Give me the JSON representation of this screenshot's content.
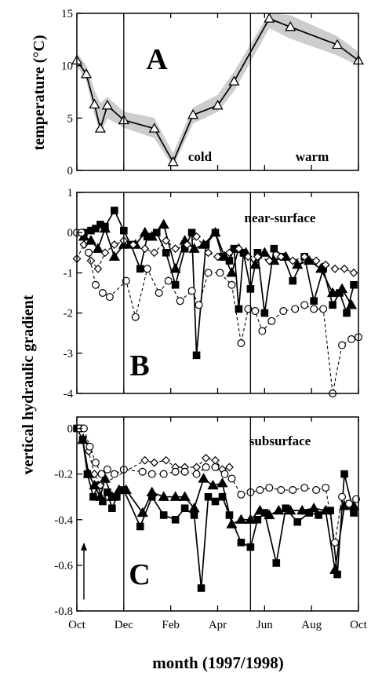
{
  "figure": {
    "x_axis_label": "month (1997/1998)",
    "y_label_top": "temperature (°C)",
    "y_label_bottom": "vertical hydraulic gradient",
    "month_ticks": [
      "Oct",
      "Dec",
      "Feb",
      "Apr",
      "Jun",
      "Aug",
      "Oct"
    ]
  },
  "chart_data": [
    {
      "type": "line",
      "panel": "A",
      "title": "A",
      "ylabel": "temperature (°C)",
      "xlabel": "",
      "x_unit": "months since Oct 1997",
      "xlim": [
        0,
        12
      ],
      "ylim": [
        0,
        15
      ],
      "yticks": [
        0,
        5,
        10,
        15
      ],
      "grid": false,
      "annotations": [
        "cold",
        "warm"
      ],
      "divider_x": [
        2,
        7.4
      ],
      "series": [
        {
          "marker": "open-triangle",
          "x": [
            0.0,
            0.4,
            0.75,
            1.0,
            1.3,
            2.0,
            3.3,
            4.1,
            4.95,
            6.0,
            6.7,
            8.2,
            9.1,
            11.1,
            12.0
          ],
          "y": [
            10.5,
            9.2,
            6.3,
            4.0,
            6.2,
            4.8,
            4.0,
            0.8,
            5.3,
            6.2,
            8.5,
            14.5,
            13.7,
            12.0,
            10.5
          ]
        }
      ],
      "band_upper": [
        11.2,
        10.0,
        7.6,
        6.4,
        7.0,
        5.6,
        5.0,
        1.6,
        6.0,
        7.2,
        9.4,
        15.0,
        14.8,
        12.8,
        11.3
      ],
      "band_lower": [
        10.0,
        8.6,
        5.4,
        3.6,
        5.0,
        4.1,
        3.1,
        0.4,
        4.5,
        5.6,
        7.6,
        13.6,
        12.6,
        11.0,
        10.0
      ]
    },
    {
      "type": "line",
      "panel": "B",
      "title": "B",
      "ylabel": "vertical hydraulic gradient",
      "xlabel": "",
      "x_unit": "months since Oct 1997",
      "xlim": [
        0,
        12
      ],
      "ylim": [
        -4,
        1
      ],
      "yticks": [
        -4,
        -3,
        -2,
        -1,
        0,
        1
      ],
      "grid": false,
      "annotations": [
        "near-surface"
      ],
      "divider_x": [
        2,
        7.4
      ],
      "series": [
        {
          "marker": "filled-square",
          "x": [
            0.3,
            0.6,
            0.8,
            1.0,
            1.2,
            1.6,
            2.0,
            2.3,
            2.7,
            3.0,
            3.4,
            3.8,
            4.2,
            4.6,
            4.9,
            5.1,
            5.5,
            5.9,
            6.2,
            6.5,
            6.7,
            6.9,
            7.1,
            7.4,
            7.7,
            8.0,
            8.4,
            8.8,
            9.2,
            9.7,
            10.1,
            10.5,
            10.9,
            11.2,
            11.5,
            11.8
          ],
          "y": [
            0.0,
            0.05,
            0.1,
            0.2,
            0.15,
            0.55,
            0.05,
            -0.3,
            -0.9,
            -0.1,
            0.0,
            -0.5,
            -1.3,
            -0.4,
            0.0,
            -3.05,
            -0.3,
            0.0,
            -0.6,
            -0.7,
            -0.4,
            -1.9,
            -0.5,
            -1.4,
            -0.5,
            -2.0,
            -0.4,
            -0.6,
            -1.2,
            -0.6,
            -1.7,
            -0.9,
            -1.8,
            -1.5,
            -2.0,
            -1.3
          ]
        },
        {
          "marker": "filled-triangle",
          "x": [
            0.3,
            0.6,
            0.9,
            1.2,
            1.6,
            2.0,
            2.5,
            2.9,
            3.2,
            3.7,
            4.2,
            4.6,
            5.0,
            5.4,
            5.9,
            6.3,
            6.6,
            6.9,
            7.2,
            7.6,
            8.0,
            8.4,
            8.9,
            9.4,
            9.9,
            10.4,
            10.9,
            11.3,
            11.7
          ],
          "y": [
            -0.1,
            -0.2,
            -0.4,
            0.1,
            -0.6,
            -0.3,
            -0.3,
            0.0,
            -0.1,
            0.2,
            -0.9,
            -0.2,
            -0.4,
            -0.3,
            0.0,
            -0.6,
            -1.0,
            -0.4,
            -0.5,
            -0.8,
            -0.5,
            -0.7,
            -0.6,
            -0.8,
            -0.7,
            -0.9,
            -1.5,
            -1.4,
            -1.8
          ]
        },
        {
          "marker": "open-diamond",
          "x": [
            0.0,
            0.3,
            0.6,
            0.9,
            1.2,
            1.6,
            2.0,
            2.4,
            2.9,
            3.3,
            3.8,
            4.2,
            4.7,
            5.1,
            5.6,
            6.0,
            6.5,
            6.9,
            7.3,
            7.7,
            8.2,
            8.7,
            9.2,
            9.7,
            10.2,
            10.6,
            11.0,
            11.4,
            11.8
          ],
          "y": [
            -0.65,
            -0.3,
            -0.7,
            -0.9,
            -0.5,
            -0.3,
            -0.2,
            -0.3,
            -0.4,
            -0.5,
            -0.2,
            -0.4,
            -0.3,
            -0.1,
            -0.5,
            -0.6,
            -0.5,
            -0.4,
            -0.6,
            -0.6,
            -0.7,
            -0.6,
            -0.7,
            -0.6,
            -0.7,
            -0.8,
            -0.9,
            -0.9,
            -1.0
          ]
        },
        {
          "marker": "open-circle",
          "x": [
            0.0,
            0.2,
            0.5,
            0.8,
            1.1,
            1.4,
            2.1,
            2.5,
            3.0,
            3.5,
            3.9,
            4.4,
            4.9,
            5.2,
            5.6,
            6.1,
            6.6,
            7.0,
            7.3,
            7.6,
            7.9,
            8.3,
            8.8,
            9.3,
            9.7,
            10.1,
            10.5,
            10.9,
            11.3,
            11.7,
            12.0
          ],
          "y": [
            0.0,
            0.0,
            -0.5,
            -1.3,
            -1.5,
            -1.6,
            -1.2,
            -2.1,
            -0.9,
            -1.5,
            -1.2,
            -1.7,
            -1.45,
            -1.8,
            -1.0,
            -1.0,
            -1.3,
            -2.75,
            -1.9,
            -1.95,
            -2.45,
            -2.2,
            -1.95,
            -1.9,
            -1.8,
            -1.9,
            -1.9,
            -4.0,
            -2.8,
            -2.65,
            -2.6
          ]
        }
      ]
    },
    {
      "type": "line",
      "panel": "C",
      "title": "C",
      "ylabel": "vertical hydraulic gradient",
      "xlabel": "month (1997/1998)",
      "x_unit": "months since Oct 1997",
      "xlim": [
        0,
        12
      ],
      "ylim": [
        -0.8,
        0.05
      ],
      "yticks": [
        -0.8,
        -0.6,
        -0.4,
        -0.2,
        0
      ],
      "xticks": [
        "Oct",
        "Dec",
        "Feb",
        "Apr",
        "Jun",
        "Aug",
        "Oct"
      ],
      "grid": false,
      "annotations": [
        "subsurface"
      ],
      "arrow": {
        "x": 0.3,
        "from_y": -0.75,
        "to_y": -0.5
      },
      "divider_x": [
        2,
        7.4
      ],
      "series": [
        {
          "marker": "filled-square",
          "x": [
            0.0,
            0.25,
            0.45,
            0.7,
            0.9,
            1.1,
            1.3,
            1.5,
            1.7,
            2.0,
            2.7,
            3.2,
            3.7,
            4.2,
            4.6,
            5.0,
            5.3,
            5.6,
            5.9,
            6.2,
            6.5,
            7.0,
            7.4,
            7.7,
            8.0,
            8.5,
            8.9,
            9.4,
            9.9,
            10.3,
            10.8,
            11.1,
            11.4,
            11.8
          ],
          "y": [
            0.0,
            -0.05,
            -0.2,
            -0.3,
            -0.25,
            -0.32,
            -0.28,
            -0.35,
            -0.3,
            -0.27,
            -0.43,
            -0.3,
            -0.38,
            -0.4,
            -0.35,
            -0.38,
            -0.7,
            -0.3,
            -0.32,
            -0.3,
            -0.38,
            -0.5,
            -0.52,
            -0.4,
            -0.37,
            -0.59,
            -0.35,
            -0.41,
            -0.37,
            -0.38,
            -0.36,
            -0.64,
            -0.2,
            -0.37
          ]
        },
        {
          "marker": "filled-triangle",
          "x": [
            0.25,
            0.5,
            0.75,
            1.0,
            1.2,
            1.5,
            1.8,
            2.1,
            2.8,
            3.2,
            3.7,
            4.2,
            4.6,
            5.0,
            5.4,
            5.8,
            6.2,
            6.6,
            7.0,
            7.4,
            7.8,
            8.2,
            8.6,
            9.1,
            9.6,
            10.1,
            10.6,
            11.0,
            11.4,
            11.8
          ],
          "y": [
            -0.05,
            -0.2,
            -0.25,
            -0.3,
            -0.22,
            -0.3,
            -0.27,
            -0.27,
            -0.37,
            -0.28,
            -0.3,
            -0.3,
            -0.3,
            -0.35,
            -0.22,
            -0.25,
            -0.24,
            -0.42,
            -0.4,
            -0.4,
            -0.36,
            -0.38,
            -0.36,
            -0.36,
            -0.36,
            -0.35,
            -0.36,
            -0.62,
            -0.34,
            -0.34
          ]
        },
        {
          "marker": "open-diamond",
          "x": [
            0.2,
            0.5,
            0.75,
            1.0,
            2.9,
            3.3,
            3.8,
            4.2,
            4.6,
            5.1,
            5.5,
            5.9,
            6.2,
            6.5
          ],
          "y": [
            0.0,
            -0.1,
            -0.2,
            -0.25,
            -0.14,
            -0.15,
            -0.14,
            -0.17,
            -0.17,
            -0.17,
            -0.13,
            -0.14,
            -0.18,
            -0.17
          ]
        },
        {
          "marker": "open-circle",
          "x": [
            0.1,
            0.3,
            0.55,
            0.8,
            1.05,
            1.3,
            1.6,
            2.0,
            2.8,
            3.2,
            3.7,
            4.2,
            4.6,
            5.1,
            5.5,
            5.9,
            6.3,
            6.6,
            7.0,
            7.4,
            7.8,
            8.2,
            8.7,
            9.2,
            9.7,
            10.2,
            10.6,
            11.0,
            11.3,
            11.6,
            11.9
          ],
          "y": [
            0.0,
            0.0,
            -0.08,
            -0.15,
            -0.2,
            -0.18,
            -0.2,
            -0.18,
            -0.19,
            -0.2,
            -0.2,
            -0.19,
            -0.19,
            -0.2,
            -0.17,
            -0.17,
            -0.2,
            -0.22,
            -0.29,
            -0.28,
            -0.27,
            -0.26,
            -0.27,
            -0.27,
            -0.26,
            -0.27,
            -0.26,
            -0.5,
            -0.3,
            -0.33,
            -0.31
          ]
        }
      ]
    }
  ]
}
